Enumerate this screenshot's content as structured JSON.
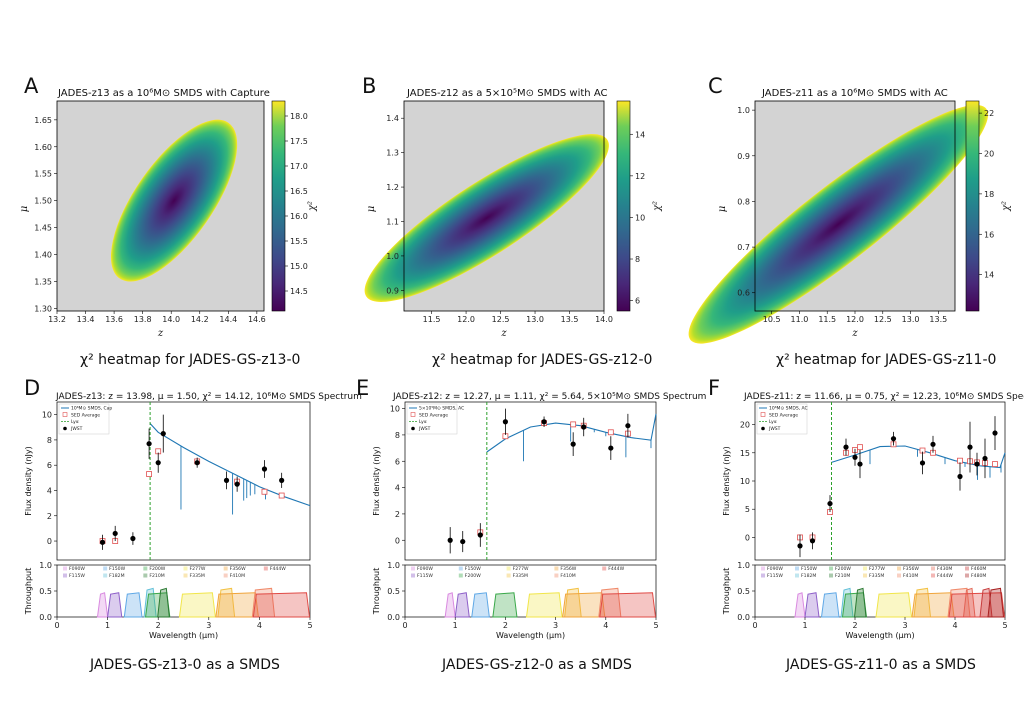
{
  "panels": {
    "A": {
      "label": "A",
      "title": "JADES-z13 as a 10⁶M⊙ SMDS with Capture",
      "caption": "χ² heatmap for JADES-GS-z13-0"
    },
    "B": {
      "label": "B",
      "title": "JADES-z12 as a 5×10⁵M⊙ SMDS with AC",
      "caption": "χ² heatmap for JADES-GS-z12-0"
    },
    "C": {
      "label": "C",
      "title": "JADES-z11 as a 10⁶M⊙ SMDS with AC",
      "caption": "χ² heatmap for JADES-GS-z11-0"
    },
    "D": {
      "label": "D",
      "title": "JADES-z13: z = 13.98, μ = 1.50, χ² = 14.12, 10⁶M⊙ SMDS Spectrum",
      "caption": "JADES-GS-z13-0 as a SMDS"
    },
    "E": {
      "label": "E",
      "title": "JADES-z12: z = 12.27, μ = 1.11, χ² = 5.64, 5×10⁵M⊙ SMDS Spectrum",
      "caption": "JADES-GS-z12-0 as a SMDS"
    },
    "F": {
      "label": "F",
      "title": "JADES-z11: z = 11.66, μ = 0.75, χ² = 12.23, 10⁶M⊙ SMDS Spectrum",
      "caption": "JADES-GS-z11-0 as a SMDS"
    }
  },
  "colors": {
    "heat_bg": "#d3d3d3",
    "model_line": "#1f77b4",
    "lya_line": "#2ca02c",
    "sed_avg": "#e05050",
    "jwst": "#000000"
  },
  "chart_data": [
    {
      "id": "A",
      "type": "heatmap",
      "xlabel": "z",
      "ylabel": "μ",
      "colorbar_label": "χ²",
      "xlim": [
        13.2,
        14.65
      ],
      "ylim": [
        1.295,
        1.685
      ],
      "xticks": [
        "13.2",
        "13.4",
        "13.6",
        "13.8",
        "14.0",
        "14.2",
        "14.4",
        "14.6"
      ],
      "yticks": [
        "1.30",
        "1.35",
        "1.40",
        "1.45",
        "1.50",
        "1.55",
        "1.60",
        "1.65"
      ],
      "cbar_range": [
        14.1,
        18.3
      ],
      "cbar_ticks": [
        "14.5",
        "15.0",
        "15.5",
        "16.0",
        "16.5",
        "17.0",
        "17.5",
        "18.0"
      ],
      "region": {
        "center": [
          14.02,
          1.5
        ],
        "angle_deg": 55,
        "semi_major_units": [
          0.28,
          0.16
        ],
        "semi_minor_units": [
          0.22,
          0.07
        ]
      }
    },
    {
      "id": "B",
      "type": "heatmap",
      "xlabel": "z",
      "ylabel": "μ",
      "colorbar_label": "χ²",
      "xlim": [
        11.1,
        14.0
      ],
      "ylim": [
        0.84,
        1.45
      ],
      "xticks": [
        "11.5",
        "12.0",
        "12.5",
        "13.0",
        "13.5",
        "14.0"
      ],
      "yticks": [
        "0.9",
        "1.0",
        "1.1",
        "1.2",
        "1.3",
        "1.4"
      ],
      "cbar_range": [
        5.5,
        15.6
      ],
      "cbar_ticks": [
        "6",
        "8",
        "10",
        "12",
        "14"
      ],
      "region": {
        "center": [
          12.3,
          1.11
        ],
        "angle_deg": 33,
        "semi_major_units": [
          1.45,
          0.3
        ],
        "semi_minor_units": [
          0.5,
          0.1
        ]
      }
    },
    {
      "id": "C",
      "type": "heatmap",
      "xlabel": "z",
      "ylabel": "μ",
      "colorbar_label": "χ²",
      "xlim": [
        10.2,
        13.8
      ],
      "ylim": [
        0.56,
        1.02
      ],
      "xticks": [
        "10.5",
        "11.0",
        "11.5",
        "12.0",
        "12.5",
        "13.0",
        "13.5"
      ],
      "yticks": [
        "0.6",
        "0.7",
        "0.8",
        "0.9",
        "1.0"
      ],
      "cbar_range": [
        12.2,
        22.6
      ],
      "cbar_ticks": [
        "14",
        "16",
        "18",
        "20",
        "22"
      ],
      "region": {
        "center": [
          11.7,
          0.75
        ],
        "angle_deg": 38,
        "semi_major_units": [
          1.9,
          0.34
        ],
        "semi_minor_units": [
          0.55,
          0.08
        ]
      }
    },
    {
      "id": "D",
      "type": "line",
      "xlabel": "Wavelength (μm)",
      "ylabel": "Flux density (nJy)",
      "ylabel2": "Throughput",
      "xlim": [
        0,
        5
      ],
      "ylim": [
        -1.5,
        11
      ],
      "xticks": [
        "0",
        "1",
        "2",
        "3",
        "4",
        "5"
      ],
      "yticks": [
        "0",
        "2",
        "4",
        "6",
        "8",
        "10"
      ],
      "tp_ticks": [
        "0.0",
        "0.5",
        "1.0"
      ],
      "legend": [
        "10⁶M⊙ SMDS, Cap",
        "SED Average",
        "Lyα",
        "JWST"
      ],
      "lya": 1.84,
      "model": [
        [
          1.84,
          9.3
        ],
        [
          2.0,
          8.6
        ],
        [
          2.5,
          7.4
        ],
        [
          3.0,
          6.3
        ],
        [
          3.5,
          5.3
        ],
        [
          4.0,
          4.3
        ],
        [
          4.5,
          3.5
        ],
        [
          5.0,
          2.8
        ]
      ],
      "absorption": [
        [
          2.45,
          2.5
        ],
        [
          3.47,
          2.1
        ],
        [
          3.69,
          3.2
        ],
        [
          3.75,
          3.4
        ],
        [
          3.82,
          3.6
        ],
        [
          3.91,
          3.7
        ],
        [
          4.12,
          3.3
        ]
      ],
      "jwst": [
        [
          0.9,
          -0.1,
          0.6
        ],
        [
          1.15,
          0.6,
          0.6
        ],
        [
          1.5,
          0.2,
          0.5
        ],
        [
          1.82,
          7.7,
          1.2
        ],
        [
          2.0,
          6.2,
          0.8
        ],
        [
          2.1,
          8.5,
          1.5
        ],
        [
          2.77,
          6.2,
          0.4
        ],
        [
          3.35,
          4.8,
          0.7
        ],
        [
          3.56,
          4.5,
          0.6
        ],
        [
          4.1,
          5.7,
          0.7
        ],
        [
          4.44,
          4.8,
          0.6
        ]
      ],
      "sed": [
        [
          0.9,
          0.0
        ],
        [
          1.15,
          0.0
        ],
        [
          1.82,
          5.3
        ],
        [
          2.0,
          7.1
        ],
        [
          2.77,
          6.3
        ],
        [
          3.56,
          4.7
        ],
        [
          4.1,
          3.9
        ],
        [
          4.44,
          3.6
        ]
      ],
      "filters": [
        "F090W",
        "F115W",
        "F150W",
        "F182M",
        "F200W",
        "F210M",
        "F277W",
        "F335M",
        "F356W",
        "F410M",
        "F444W"
      ]
    },
    {
      "id": "E",
      "type": "line",
      "xlabel": "Wavelength (μm)",
      "ylabel": "Flux density (nJy)",
      "ylabel2": "Throughput",
      "xlim": [
        0,
        5
      ],
      "ylim": [
        -1.5,
        10.5
      ],
      "xticks": [
        "0",
        "1",
        "2",
        "3",
        "4",
        "5"
      ],
      "yticks": [
        "0",
        "2",
        "4",
        "6",
        "8",
        "10"
      ],
      "tp_ticks": [
        "0.0",
        "0.5",
        "1.0"
      ],
      "legend": [
        "5×10⁵M⊙ SMDS, AC",
        "SED Average",
        "Lyα",
        "JWST"
      ],
      "lya": 1.63,
      "model": [
        [
          1.63,
          6.7
        ],
        [
          2.0,
          7.7
        ],
        [
          2.5,
          8.6
        ],
        [
          3.0,
          8.9
        ],
        [
          3.5,
          8.7
        ],
        [
          4.0,
          8.2
        ],
        [
          4.5,
          7.8
        ],
        [
          4.9,
          7.6
        ],
        [
          5.0,
          9.6
        ]
      ],
      "absorption": [
        [
          2.36,
          6.0
        ],
        [
          3.3,
          7.5
        ],
        [
          3.77,
          8.2
        ],
        [
          4.0,
          7.9
        ],
        [
          4.4,
          6.3
        ],
        [
          4.9,
          7.0
        ]
      ],
      "jwst": [
        [
          0.9,
          0.0,
          1.0
        ],
        [
          1.15,
          -0.1,
          0.8
        ],
        [
          1.5,
          0.4,
          0.9
        ],
        [
          2.0,
          9.0,
          1.0
        ],
        [
          2.77,
          9.0,
          0.4
        ],
        [
          3.35,
          7.3,
          0.9
        ],
        [
          3.56,
          8.6,
          0.7
        ],
        [
          4.1,
          7.0,
          0.9
        ],
        [
          4.44,
          8.7,
          0.9
        ]
      ],
      "sed": [
        [
          1.5,
          0.6
        ],
        [
          2.0,
          7.9
        ],
        [
          2.77,
          8.9
        ],
        [
          3.35,
          8.8
        ],
        [
          3.56,
          8.7
        ],
        [
          4.1,
          8.2
        ],
        [
          4.44,
          8.1
        ]
      ],
      "filters": [
        "F090W",
        "F115W",
        "F150W",
        "F200W",
        "F277W",
        "F335M",
        "F356W",
        "F410M",
        "F444W"
      ]
    },
    {
      "id": "F",
      "type": "line",
      "xlabel": "Wavelength (μm)",
      "ylabel": "Flux density (nJy)",
      "ylabel2": "Throughput",
      "xlim": [
        0,
        5
      ],
      "ylim": [
        -4,
        24
      ],
      "xticks": [
        "0",
        "1",
        "2",
        "3",
        "4",
        "5"
      ],
      "yticks": [
        "0",
        "5",
        "10",
        "15",
        "20"
      ],
      "tp_ticks": [
        "0.0",
        "0.5",
        "1.0"
      ],
      "legend": [
        "10⁶M⊙ SMDS, AC",
        "SED Average",
        "Lyα",
        "JWST"
      ],
      "lya": 1.53,
      "model": [
        [
          1.53,
          13.3
        ],
        [
          2.0,
          14.6
        ],
        [
          2.5,
          16.1
        ],
        [
          3.0,
          16.2
        ],
        [
          3.5,
          15.0
        ],
        [
          4.0,
          13.6
        ],
        [
          4.5,
          12.7
        ],
        [
          4.9,
          12.4
        ],
        [
          5.0,
          15.0
        ]
      ],
      "absorption": [
        [
          2.3,
          13.0
        ],
        [
          3.25,
          14.3
        ],
        [
          3.8,
          13.0
        ],
        [
          4.2,
          12.5
        ],
        [
          4.45,
          10.2
        ],
        [
          4.7,
          10.6
        ],
        [
          4.92,
          11.5
        ]
      ],
      "jwst": [
        [
          0.9,
          -1.5,
          2.0
        ],
        [
          1.15,
          -0.6,
          1.5
        ],
        [
          1.5,
          6.0,
          1.5
        ],
        [
          1.82,
          16.0,
          1.5
        ],
        [
          2.0,
          14.2,
          1.5
        ],
        [
          2.1,
          13.0,
          2.5
        ],
        [
          2.77,
          17.5,
          1.2
        ],
        [
          3.35,
          13.2,
          2.0
        ],
        [
          3.56,
          16.5,
          1.5
        ],
        [
          4.1,
          10.8,
          2.5
        ],
        [
          4.3,
          16.0,
          4.5
        ],
        [
          4.44,
          13.0,
          2.0
        ],
        [
          4.6,
          14.0,
          3.5
        ],
        [
          4.8,
          18.5,
          3.0
        ]
      ],
      "sed": [
        [
          0.9,
          0.0
        ],
        [
          1.15,
          0.0
        ],
        [
          1.5,
          4.5
        ],
        [
          1.82,
          15.0
        ],
        [
          2.0,
          15.5
        ],
        [
          2.1,
          16.0
        ],
        [
          2.77,
          16.5
        ],
        [
          3.35,
          15.4
        ],
        [
          3.56,
          15.0
        ],
        [
          4.1,
          13.6
        ],
        [
          4.3,
          13.5
        ],
        [
          4.44,
          13.3
        ],
        [
          4.6,
          13.2
        ],
        [
          4.8,
          13.0
        ]
      ],
      "filters": [
        "F090W",
        "F115W",
        "F150W",
        "F182M",
        "F200W",
        "F210M",
        "F277W",
        "F335M",
        "F356W",
        "F410M",
        "F430M",
        "F444W",
        "F460M",
        "F480M"
      ]
    }
  ]
}
